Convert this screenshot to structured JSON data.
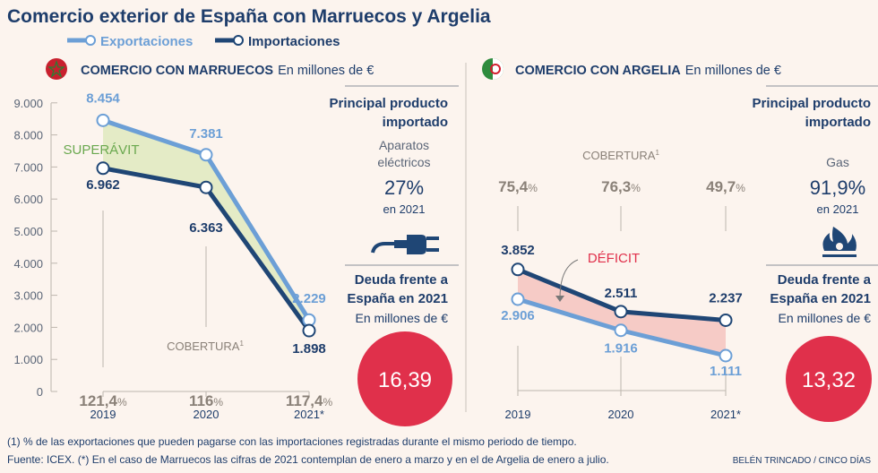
{
  "title": "Comercio exterior de España con Marruecos y Argelia",
  "legend": {
    "exports": "Exportaciones",
    "imports": "Importaciones"
  },
  "colors": {
    "exports": "#6c9fd6",
    "imports": "#1f4675",
    "surplus": "#e4ebc6",
    "deficit": "#f6cbc6",
    "debt": "#e0304b",
    "text": "#1e3d6b"
  },
  "chart_data": [
    {
      "type": "line",
      "title": "COMERCIO CON MARRUECOS",
      "unit": "En millones de €",
      "categories": [
        "2019",
        "2020",
        "2021*"
      ],
      "series": [
        {
          "name": "Exportaciones",
          "values": [
            8454,
            7381,
            2229
          ],
          "labels": [
            "8.454",
            "7.381",
            "2.229"
          ]
        },
        {
          "name": "Importaciones",
          "values": [
            6962,
            6363,
            1898
          ],
          "labels": [
            "6.962",
            "6.363",
            "1.898"
          ]
        }
      ],
      "ylim": [
        0,
        9000
      ],
      "yticks": [
        "0",
        "1.000",
        "2.000",
        "3.000",
        "4.000",
        "5.000",
        "6.000",
        "7.000",
        "8.000",
        "9.000"
      ],
      "annotation": "SUPERÁVIT",
      "coverage_label": "COBERTURA",
      "coverage_sup": "1",
      "coverage": [
        "121,4",
        "116",
        "117,4"
      ],
      "pct": "%"
    },
    {
      "type": "line",
      "title": "COMERCIO CON ARGELIA",
      "unit": "En millones de €",
      "categories": [
        "2019",
        "2020",
        "2021*"
      ],
      "series": [
        {
          "name": "Exportaciones",
          "values": [
            2906,
            1916,
            1111
          ],
          "labels": [
            "2.906",
            "1.916",
            "1.111"
          ]
        },
        {
          "name": "Importaciones",
          "values": [
            3852,
            2511,
            2237
          ],
          "labels": [
            "3.852",
            "2.511",
            "2.237"
          ]
        }
      ],
      "ylim": [
        0,
        9000
      ],
      "annotation": "DÉFICIT",
      "coverage_label": "COBERTURA",
      "coverage_sup": "1",
      "coverage": [
        "75,4",
        "76,3",
        "49,7"
      ],
      "pct": "%"
    }
  ],
  "panels": [
    {
      "heading1": "Principal producto",
      "heading2": "importado",
      "product1": "Aparatos",
      "product2": "eléctricos",
      "share": "27%",
      "year": "en 2021",
      "debt1": "Deuda frente a",
      "debt2": "España en 2021",
      "debt_unit": "En millones de €",
      "debt": "16,39"
    },
    {
      "heading1": "Principal producto",
      "heading2": "importado",
      "product1": "Gas",
      "share": "91,9%",
      "year": "en 2021",
      "debt1": "Deuda frente a",
      "debt2": "España en 2021",
      "debt_unit": "En millones de €",
      "debt": "13,32"
    }
  ],
  "footer": {
    "note": "(1) % de las exportaciones que pueden pagarse con las importaciones registradas durante el mismo periodo de tiempo.",
    "source": "Fuente: ICEX. (*) En el caso de Marruecos las cifras de 2021 contemplan de enero a marzo y en el de Argelia de enero a julio.",
    "credit": "BELÉN TRINCADO / CINCO DÍAS"
  }
}
